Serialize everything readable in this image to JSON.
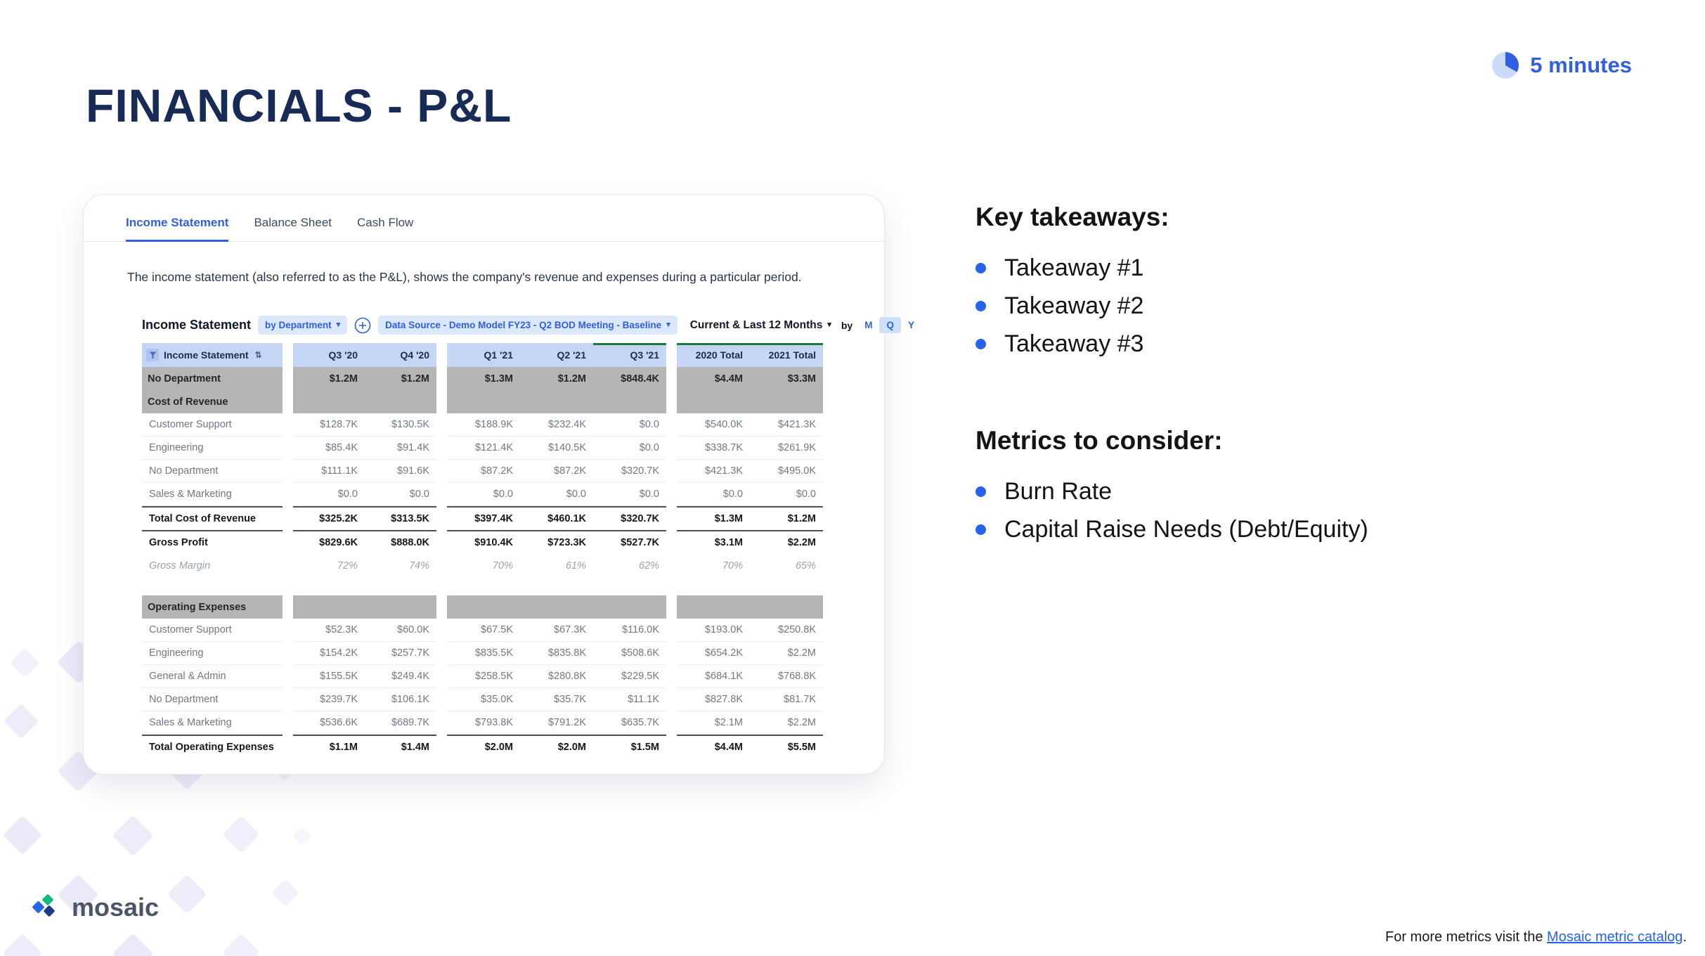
{
  "slide": {
    "title": "FINANCIALS - P&L",
    "duration": "5 minutes",
    "logo_text": "mosaic",
    "footer": {
      "prefix": "For more metrics visit the ",
      "link": "Mosaic metric catalog",
      "suffix": "."
    }
  },
  "takeaways": {
    "heading": "Key takeaways:",
    "items": [
      "Takeaway #1",
      "Takeaway #2",
      "Takeaway #3"
    ]
  },
  "metrics": {
    "heading": "Metrics to consider:",
    "items": [
      "Burn Rate",
      "Capital Raise Needs (Debt/Equity)"
    ]
  },
  "icons": {
    "chevron_down": "▾",
    "sort": "⇅"
  },
  "app": {
    "tabs": [
      "Income Statement",
      "Balance Sheet",
      "Cash Flow"
    ],
    "active_tab": "Income Statement",
    "description": "The income statement (also referred to as the P&L), shows the company's revenue and expenses during a particular period.",
    "controls": {
      "title": "Income Statement",
      "by_department": "by Department",
      "data_source": "Data Source - Demo Model FY23 - Q2 BOD Meeting - Baseline",
      "period": "Current & Last 12 Months",
      "by_label": "by",
      "granularity": [
        "M",
        "Q",
        "Y"
      ],
      "granularity_selected": "Q"
    },
    "table": {
      "first_header": "Income Statement",
      "column_groups": [
        {
          "columns": [
            "Q3 '20",
            "Q4 '20"
          ]
        },
        {
          "columns": [
            "Q1 '21",
            "Q2 '21",
            "Q3 '21"
          ]
        },
        {
          "columns": [
            "2020 Total",
            "2021 Total"
          ]
        }
      ],
      "current_period_columns": [
        "Q3 '21",
        "2020 Total",
        "2021 Total"
      ],
      "rows": [
        {
          "type": "section",
          "label": "No Department",
          "values": [
            "$1.2M",
            "$1.2M",
            "$1.3M",
            "$1.2M",
            "$848.4K",
            "$4.4M",
            "$3.3M"
          ]
        },
        {
          "type": "section",
          "label": "Cost of Revenue",
          "values": [
            "",
            "",
            "",
            "",
            "",
            "",
            ""
          ]
        },
        {
          "type": "data",
          "label": "Customer Support",
          "values": [
            "$128.7K",
            "$130.5K",
            "$188.9K",
            "$232.4K",
            "$0.0",
            "$540.0K",
            "$421.3K"
          ]
        },
        {
          "type": "data",
          "label": "Engineering",
          "values": [
            "$85.4K",
            "$91.4K",
            "$121.4K",
            "$140.5K",
            "$0.0",
            "$338.7K",
            "$261.9K"
          ]
        },
        {
          "type": "data",
          "label": "No Department",
          "values": [
            "$111.1K",
            "$91.6K",
            "$87.2K",
            "$87.2K",
            "$320.7K",
            "$421.3K",
            "$495.0K"
          ]
        },
        {
          "type": "data",
          "label": "Sales & Marketing",
          "values": [
            "$0.0",
            "$0.0",
            "$0.0",
            "$0.0",
            "$0.0",
            "$0.0",
            "$0.0"
          ]
        },
        {
          "type": "total",
          "label": "Total Cost of Revenue",
          "values": [
            "$325.2K",
            "$313.5K",
            "$397.4K",
            "$460.1K",
            "$320.7K",
            "$1.3M",
            "$1.2M"
          ]
        },
        {
          "type": "total",
          "label": "Gross Profit",
          "values": [
            "$829.6K",
            "$888.0K",
            "$910.4K",
            "$723.3K",
            "$527.7K",
            "$3.1M",
            "$2.2M"
          ]
        },
        {
          "type": "margin",
          "label": "Gross Margin",
          "values": [
            "72%",
            "74%",
            "70%",
            "61%",
            "62%",
            "70%",
            "65%"
          ]
        },
        {
          "type": "spacer"
        },
        {
          "type": "section",
          "label": "Operating Expenses",
          "values": [
            "",
            "",
            "",
            "",
            "",
            "",
            ""
          ]
        },
        {
          "type": "data",
          "label": "Customer Support",
          "values": [
            "$52.3K",
            "$60.0K",
            "$67.5K",
            "$67.3K",
            "$116.0K",
            "$193.0K",
            "$250.8K"
          ]
        },
        {
          "type": "data",
          "label": "Engineering",
          "values": [
            "$154.2K",
            "$257.7K",
            "$835.5K",
            "$835.8K",
            "$508.6K",
            "$654.2K",
            "$2.2M"
          ]
        },
        {
          "type": "data",
          "label": "General & Admin",
          "values": [
            "$155.5K",
            "$249.4K",
            "$258.5K",
            "$280.8K",
            "$229.5K",
            "$684.1K",
            "$768.8K"
          ]
        },
        {
          "type": "data",
          "label": "No Department",
          "values": [
            "$239.7K",
            "$106.1K",
            "$35.0K",
            "$35.7K",
            "$11.1K",
            "$827.8K",
            "$81.7K"
          ]
        },
        {
          "type": "data",
          "label": "Sales & Marketing",
          "values": [
            "$536.6K",
            "$689.7K",
            "$793.8K",
            "$791.2K",
            "$635.7K",
            "$2.1M",
            "$2.2M"
          ]
        },
        {
          "type": "total",
          "label": "Total Operating Expenses",
          "values": [
            "$1.1M",
            "$1.4M",
            "$2.0M",
            "$2.0M",
            "$1.5M",
            "$4.4M",
            "$5.5M"
          ]
        }
      ]
    }
  },
  "colors": {
    "accent_blue": "#2f5fe3",
    "header_row": "#c5d5f6",
    "section_gray": "#b5b5b5",
    "current_period_green": "#1d7a3e",
    "title_navy": "#182a56"
  }
}
